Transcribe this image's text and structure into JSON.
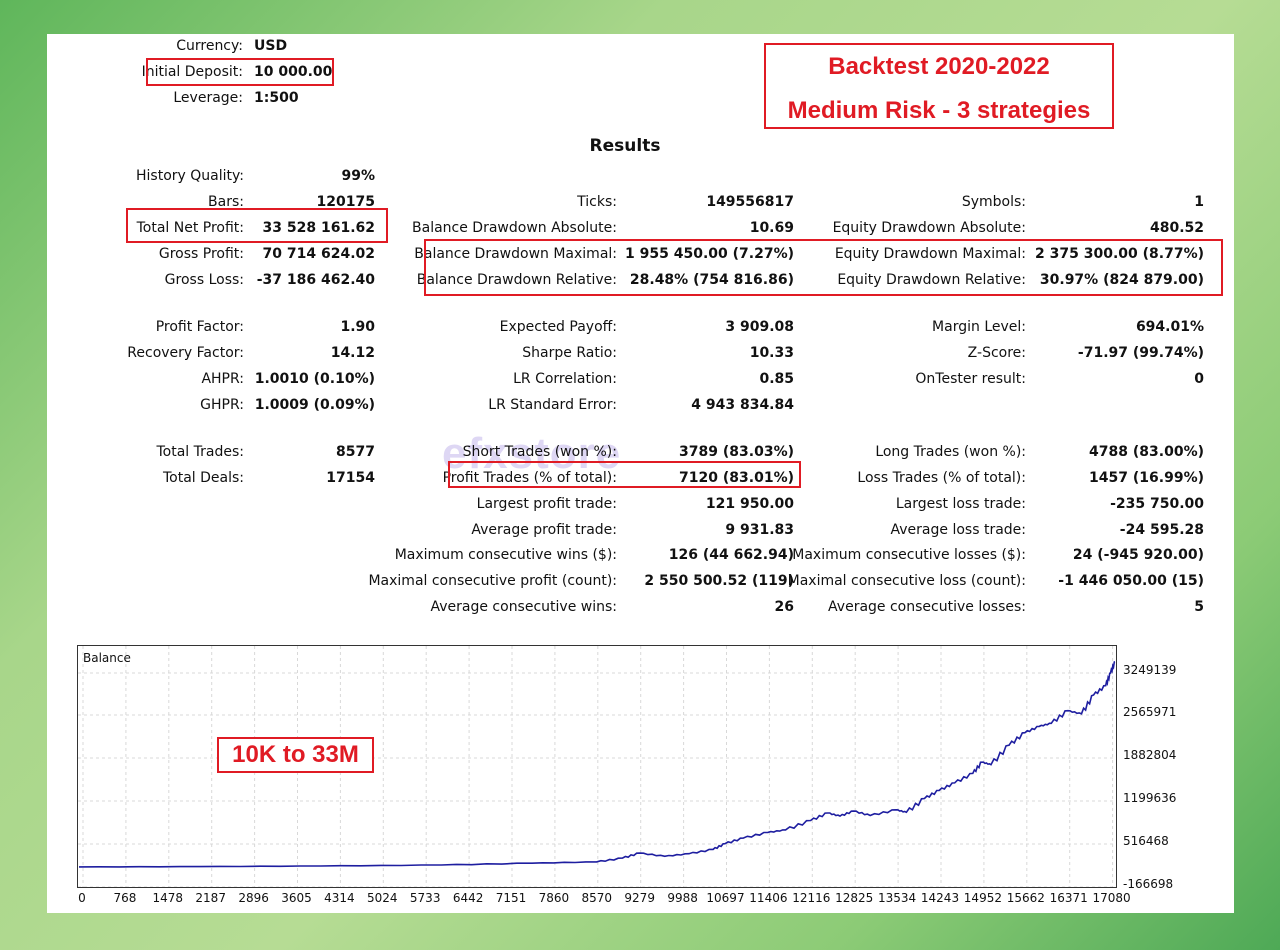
{
  "header": {
    "currency_label": "Currency:",
    "currency_value": "USD",
    "deposit_label": "Initial Deposit:",
    "deposit_value": "10 000.00",
    "leverage_label": "Leverage:",
    "leverage_value": "1:500"
  },
  "banner": {
    "line1": "Backtest 2020-2022",
    "line2": "Medium Risk - 3 strategies"
  },
  "results_title": "Results",
  "col1": [
    {
      "label": "History Quality:",
      "value": "99%"
    },
    {
      "label": "Bars:",
      "value": "120175"
    },
    {
      "label": "Total Net Profit:",
      "value": "33 528 161.62"
    },
    {
      "label": "Gross Profit:",
      "value": "70 714 624.02"
    },
    {
      "label": "Gross Loss:",
      "value": "-37 186 462.40"
    },
    {
      "label": "Profit Factor:",
      "value": "1.90"
    },
    {
      "label": "Recovery Factor:",
      "value": "14.12"
    },
    {
      "label": "AHPR:",
      "value": "1.0010 (0.10%)"
    },
    {
      "label": "GHPR:",
      "value": "1.0009 (0.09%)"
    },
    {
      "label": "Total Trades:",
      "value": "8577"
    },
    {
      "label": "Total Deals:",
      "value": "17154"
    }
  ],
  "col2": [
    {
      "label": "Ticks:",
      "value": "149556817"
    },
    {
      "label": "Balance Drawdown Absolute:",
      "value": "10.69"
    },
    {
      "label": "Balance Drawdown Maximal:",
      "value": "1 955 450.00 (7.27%)"
    },
    {
      "label": "Balance Drawdown Relative:",
      "value": "28.48% (754 816.86)"
    },
    {
      "label": "Expected Payoff:",
      "value": "3 909.08"
    },
    {
      "label": "Sharpe Ratio:",
      "value": "10.33"
    },
    {
      "label": "LR Correlation:",
      "value": "0.85"
    },
    {
      "label": "LR Standard Error:",
      "value": "4 943 834.84"
    },
    {
      "label": "Short Trades (won %):",
      "value": "3789 (83.03%)"
    },
    {
      "label": "Profit Trades (% of total):",
      "value": "7120 (83.01%)"
    },
    {
      "label": "Largest profit trade:",
      "value": "121 950.00"
    },
    {
      "label": "Average profit trade:",
      "value": "9 931.83"
    },
    {
      "label": "Maximum consecutive wins ($):",
      "value": "126 (44 662.94)"
    },
    {
      "label": "Maximal consecutive profit (count):",
      "value": "2 550 500.52 (119)"
    },
    {
      "label": "Average consecutive wins:",
      "value": "26"
    }
  ],
  "col3": [
    {
      "label": "Symbols:",
      "value": "1"
    },
    {
      "label": "Equity Drawdown Absolute:",
      "value": "480.52"
    },
    {
      "label": "Equity Drawdown Maximal:",
      "value": "2 375 300.00 (8.77%)"
    },
    {
      "label": "Equity Drawdown Relative:",
      "value": "30.97% (824 879.00)"
    },
    {
      "label": "Margin Level:",
      "value": "694.01%"
    },
    {
      "label": "Z-Score:",
      "value": "-71.97 (99.74%)"
    },
    {
      "label": "OnTester result:",
      "value": "0"
    },
    {
      "label": "Long Trades (won %):",
      "value": "4788 (83.00%)"
    },
    {
      "label": "Loss Trades (% of total):",
      "value": "1457 (16.99%)"
    },
    {
      "label": "Largest loss trade:",
      "value": "-235 750.00"
    },
    {
      "label": "Average loss trade:",
      "value": "-24 595.28"
    },
    {
      "label": "Maximum consecutive losses ($):",
      "value": "24 (-945 920.00)"
    },
    {
      "label": "Maximal consecutive loss (count):",
      "value": "-1 446 050.00 (15)"
    },
    {
      "label": "Average consecutive losses:",
      "value": "5"
    }
  ],
  "watermark": "efxstore",
  "chart_data": {
    "type": "line",
    "title": "Balance",
    "annotation": "10K to 33M",
    "line_color": "#1e1ea0",
    "y_ticks": [
      "3249139",
      "2565971",
      "1882804",
      "1199636",
      "516468",
      "-166698"
    ],
    "x_ticks": [
      "0",
      "768",
      "1478",
      "2187",
      "2896",
      "3605",
      "4314",
      "5024",
      "5733",
      "6442",
      "7151",
      "7860",
      "8570",
      "9279",
      "9988",
      "10697",
      "11406",
      "12116",
      "12825",
      "13534",
      "14243",
      "14952",
      "15662",
      "16371",
      "17080"
    ],
    "ylim": [
      -166698,
      3420000
    ],
    "xlim": [
      0,
      17154
    ],
    "series": [
      {
        "values": [
          [
            0,
            10000
          ],
          [
            2000,
            15000
          ],
          [
            4000,
            25000
          ],
          [
            6000,
            40000
          ],
          [
            7500,
            70000
          ],
          [
            8570,
            90000
          ],
          [
            9000,
            150000
          ],
          [
            9279,
            230000
          ],
          [
            9700,
            180000
          ],
          [
            10100,
            220000
          ],
          [
            10500,
            290000
          ],
          [
            10697,
            380000
          ],
          [
            11000,
            470000
          ],
          [
            11406,
            560000
          ],
          [
            11700,
            600000
          ],
          [
            12116,
            750000
          ],
          [
            12400,
            870000
          ],
          [
            12600,
            820000
          ],
          [
            12825,
            900000
          ],
          [
            13100,
            830000
          ],
          [
            13534,
            920000
          ],
          [
            13700,
            880000
          ],
          [
            14000,
            1100000
          ],
          [
            14243,
            1230000
          ],
          [
            14500,
            1350000
          ],
          [
            14800,
            1500000
          ],
          [
            14952,
            1680000
          ],
          [
            15100,
            1640000
          ],
          [
            15400,
            1950000
          ],
          [
            15662,
            2150000
          ],
          [
            15900,
            2250000
          ],
          [
            16100,
            2300000
          ],
          [
            16371,
            2500000
          ],
          [
            16600,
            2450000
          ],
          [
            16800,
            2750000
          ],
          [
            17000,
            2900000
          ],
          [
            17080,
            3100000
          ],
          [
            17154,
            3280000
          ]
        ]
      }
    ]
  }
}
